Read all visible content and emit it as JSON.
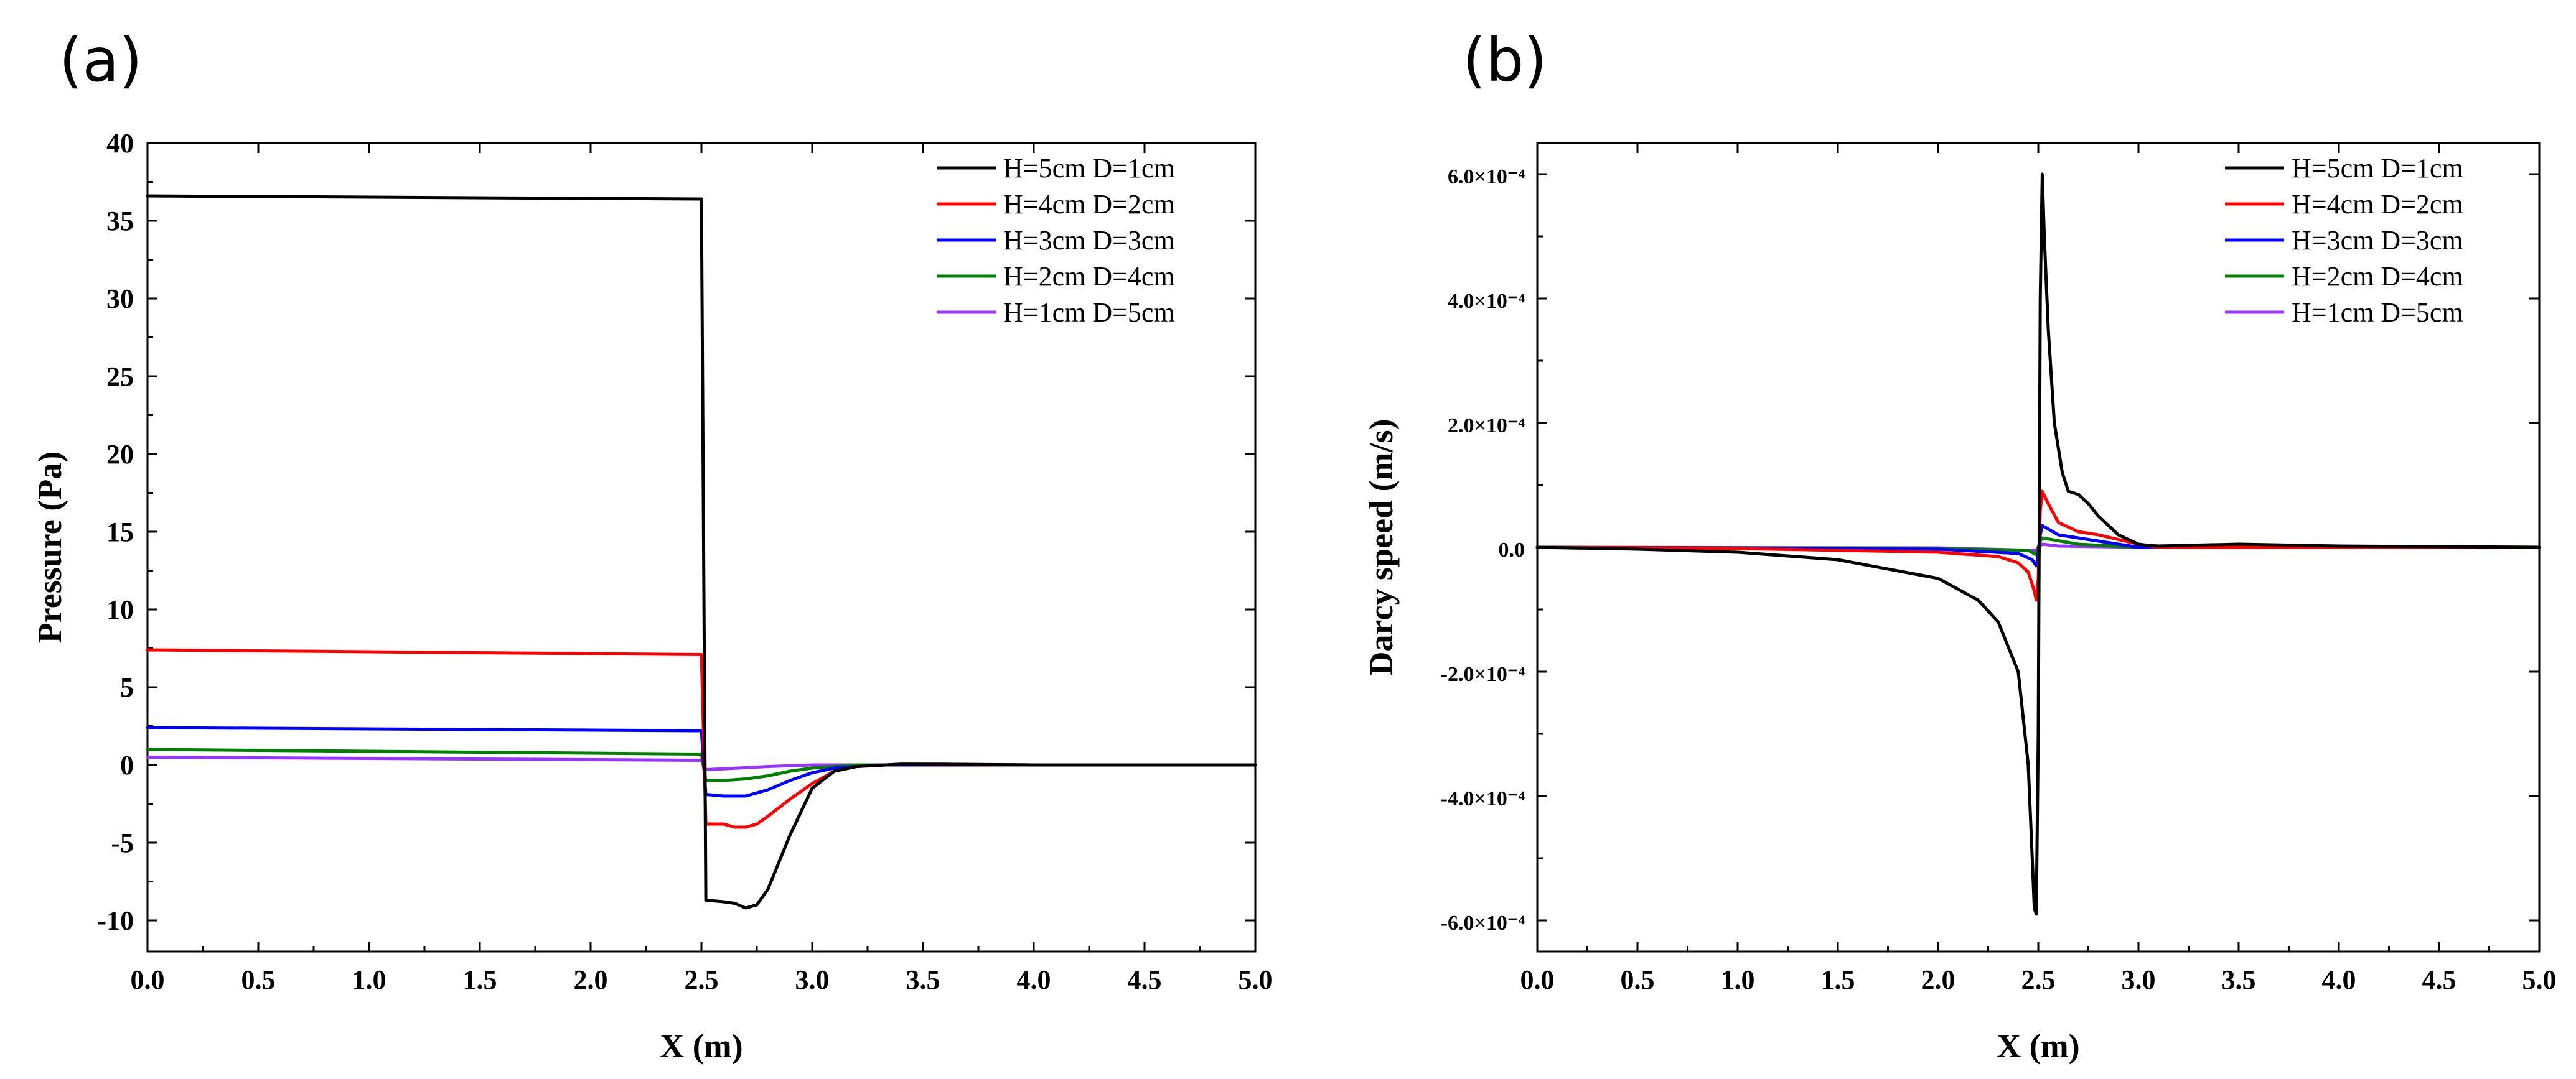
{
  "figure": {
    "panels": [
      {
        "label": "(a)"
      },
      {
        "label": "(b)"
      }
    ]
  },
  "legend": [
    {
      "name": "H=5cm D=1cm",
      "color": "#000000"
    },
    {
      "name": "H=4cm D=2cm",
      "color": "#ff0000"
    },
    {
      "name": "H=3cm D=3cm",
      "color": "#0000ff"
    },
    {
      "name": "H=2cm D=4cm",
      "color": "#008000"
    },
    {
      "name": "H=1cm D=5cm",
      "color": "#9933ff"
    }
  ],
  "chart_data": [
    {
      "type": "line",
      "panel": "(a)",
      "xlabel": "X (m)",
      "ylabel": "Pressure (Pa)",
      "xlim": [
        0,
        5
      ],
      "ylim": [
        -12,
        40
      ],
      "xticks": [
        "0.0",
        "0.5",
        "1.0",
        "1.5",
        "2.0",
        "2.5",
        "3.0",
        "3.5",
        "4.0",
        "4.5",
        "5.0"
      ],
      "xtick_values": [
        0,
        0.5,
        1,
        1.5,
        2,
        2.5,
        3,
        3.5,
        4,
        4.5,
        5
      ],
      "yticks": [
        "-10",
        "-5",
        "0",
        "5",
        "10",
        "15",
        "20",
        "25",
        "30",
        "35",
        "40"
      ],
      "ytick_values": [
        -10,
        -5,
        0,
        5,
        10,
        15,
        20,
        25,
        30,
        35,
        40
      ],
      "series": [
        {
          "name": "H=5cm D=1cm",
          "x": [
            0,
            2.48,
            2.5,
            2.52,
            2.6,
            2.65,
            2.7,
            2.75,
            2.8,
            2.9,
            3.0,
            3.1,
            3.2,
            3.4,
            3.6,
            4.0,
            5.0
          ],
          "y": [
            36.6,
            36.4,
            36.4,
            -8.7,
            -8.8,
            -8.9,
            -9.2,
            -9.0,
            -8.0,
            -4.5,
            -1.5,
            -0.4,
            -0.1,
            0.05,
            0.05,
            0.0,
            0.0
          ]
        },
        {
          "name": "H=4cm D=2cm",
          "x": [
            0,
            2.49,
            2.5,
            2.52,
            2.6,
            2.65,
            2.7,
            2.75,
            2.8,
            2.9,
            3.0,
            3.1,
            3.2,
            3.4,
            4.0,
            5.0
          ],
          "y": [
            7.4,
            7.1,
            7.1,
            -3.8,
            -3.8,
            -4.0,
            -4.0,
            -3.8,
            -3.3,
            -2.2,
            -1.2,
            -0.4,
            -0.1,
            0.05,
            0.0,
            0.0
          ]
        },
        {
          "name": "H=3cm D=3cm",
          "x": [
            0,
            2.49,
            2.5,
            2.52,
            2.6,
            2.7,
            2.8,
            2.9,
            3.0,
            3.1,
            3.3,
            4.0,
            5.0
          ],
          "y": [
            2.4,
            2.2,
            2.2,
            -1.9,
            -2.0,
            -2.0,
            -1.6,
            -1.0,
            -0.5,
            -0.2,
            0.0,
            0.0,
            0.0
          ]
        },
        {
          "name": "H=2cm D=4cm",
          "x": [
            0,
            2.49,
            2.5,
            2.52,
            2.6,
            2.7,
            2.8,
            2.9,
            3.0,
            3.2,
            4.0,
            5.0
          ],
          "y": [
            1.0,
            0.7,
            0.7,
            -1.0,
            -1.0,
            -0.9,
            -0.7,
            -0.4,
            -0.2,
            0.0,
            0.0,
            0.0
          ]
        },
        {
          "name": "H=1cm D=5cm",
          "x": [
            0,
            2.49,
            2.5,
            2.52,
            2.6,
            2.8,
            3.0,
            4.0,
            5.0
          ],
          "y": [
            0.5,
            0.3,
            0.3,
            -0.3,
            -0.25,
            -0.1,
            0.0,
            0.0,
            0.0
          ]
        }
      ]
    },
    {
      "type": "line",
      "panel": "(b)",
      "xlabel": "X (m)",
      "ylabel": "Darcy speed (m/s)",
      "xlim": [
        0,
        5
      ],
      "ylim": [
        -6.5,
        6.5
      ],
      "y_unit": "1e-4 m/s",
      "xticks": [
        "0.0",
        "0.5",
        "1.0",
        "1.5",
        "2.0",
        "2.5",
        "3.0",
        "3.5",
        "4.0",
        "4.5",
        "5.0"
      ],
      "xtick_values": [
        0,
        0.5,
        1,
        1.5,
        2,
        2.5,
        3,
        3.5,
        4,
        4.5,
        5
      ],
      "yticks": [
        "-6.0×10⁻⁴",
        "-4.0×10⁻⁴",
        "-2.0×10⁻⁴",
        "0.0",
        "2.0×10⁻⁴",
        "4.0×10⁻⁴",
        "6.0×10⁻⁴"
      ],
      "ytick_values": [
        -6,
        -4,
        -2,
        0,
        2,
        4,
        6
      ],
      "series": [
        {
          "name": "H=5cm D=1cm",
          "x": [
            0,
            0.5,
            1.0,
            1.5,
            2.0,
            2.2,
            2.3,
            2.4,
            2.45,
            2.47,
            2.48,
            2.49,
            2.5,
            2.51,
            2.52,
            2.53,
            2.55,
            2.58,
            2.62,
            2.65,
            2.7,
            2.75,
            2.8,
            2.9,
            3.0,
            3.05,
            3.1,
            3.5,
            4.0,
            5.0
          ],
          "y": [
            0,
            -0.03,
            -0.08,
            -0.2,
            -0.5,
            -0.85,
            -1.2,
            -2.0,
            -3.5,
            -5.0,
            -5.8,
            -5.9,
            -3.0,
            4.0,
            6.0,
            5.0,
            3.5,
            2.0,
            1.2,
            0.9,
            0.85,
            0.7,
            0.5,
            0.2,
            0.05,
            0.03,
            0.02,
            0.05,
            0.02,
            0.0
          ]
        },
        {
          "name": "H=4cm D=2cm",
          "x": [
            0,
            1.0,
            2.0,
            2.3,
            2.4,
            2.45,
            2.48,
            2.49,
            2.5,
            2.51,
            2.52,
            2.55,
            2.6,
            2.7,
            2.8,
            3.0,
            3.1,
            5.0
          ],
          "y": [
            0,
            -0.02,
            -0.08,
            -0.15,
            -0.25,
            -0.4,
            -0.7,
            -0.85,
            -0.5,
            0.6,
            0.9,
            0.7,
            0.4,
            0.25,
            0.2,
            0.05,
            0.0,
            0.0
          ]
        },
        {
          "name": "H=3cm D=3cm",
          "x": [
            0,
            2.0,
            2.4,
            2.47,
            2.49,
            2.5,
            2.51,
            2.52,
            2.6,
            2.8,
            3.0,
            5.0
          ],
          "y": [
            0,
            -0.03,
            -0.1,
            -0.2,
            -0.3,
            -0.1,
            0.2,
            0.35,
            0.2,
            0.1,
            0.0,
            0.0
          ]
        },
        {
          "name": "H=2cm D=4cm",
          "x": [
            0,
            2.0,
            2.45,
            2.49,
            2.5,
            2.51,
            2.52,
            2.7,
            3.0,
            5.0
          ],
          "y": [
            0,
            -0.02,
            -0.05,
            -0.12,
            0.0,
            0.1,
            0.15,
            0.05,
            0.0,
            0.0
          ]
        },
        {
          "name": "H=1cm D=5cm",
          "x": [
            0,
            2.0,
            2.49,
            2.5,
            2.52,
            2.6,
            3.0,
            5.0
          ],
          "y": [
            0,
            -0.01,
            -0.05,
            0.0,
            0.05,
            0.02,
            0.0,
            0.0
          ]
        }
      ]
    }
  ]
}
